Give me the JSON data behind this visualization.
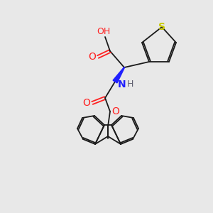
{
  "background_color": "#e8e8e8",
  "figsize": [
    3.0,
    3.0
  ],
  "dpi": 100,
  "line_color": "#1a1a1a",
  "line_width": 1.3,
  "colors": {
    "O": "#ff2020",
    "N": "#2020ff",
    "S": "#c8c800",
    "C": "#1a1a1a",
    "H_gray": "#606070"
  }
}
